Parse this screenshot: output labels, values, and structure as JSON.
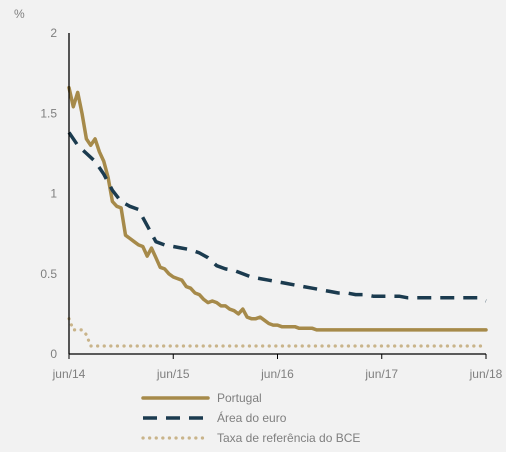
{
  "chart_data": {
    "type": "line",
    "unit_label": "%",
    "ylim": [
      0,
      2
    ],
    "y_ticks": [
      {
        "value": 0,
        "label": "0"
      },
      {
        "value": 0.5,
        "label": "0.5"
      },
      {
        "value": 1,
        "label": "1"
      },
      {
        "value": 1.5,
        "label": "1.5"
      },
      {
        "value": 2,
        "label": "2"
      }
    ],
    "xlim": [
      0,
      48
    ],
    "x_ticks": [
      {
        "value": 0,
        "label": "jun/14"
      },
      {
        "value": 12,
        "label": "jun/15"
      },
      {
        "value": 24,
        "label": "jun/16"
      },
      {
        "value": 36,
        "label": "jun/17"
      },
      {
        "value": 48,
        "label": "jun/18"
      }
    ],
    "legend_position": "bottom",
    "colors": {
      "portugal": "#a68a4a",
      "euro_area": "#1b3b4f",
      "ecb_rate": "#c9b48a",
      "axis": "#000000",
      "text": "#7f7f7f",
      "background": "#f2f2f2"
    },
    "series": [
      {
        "name": "Portugal",
        "style": "solid",
        "x": [
          0,
          0.5,
          1,
          1.5,
          2,
          2.5,
          3,
          3.5,
          4,
          4.5,
          5,
          5.5,
          6,
          6.5,
          7,
          7.5,
          8,
          8.5,
          9,
          9.5,
          10,
          10.5,
          11,
          11.5,
          12,
          12.5,
          13,
          13.5,
          14,
          14.5,
          15,
          15.5,
          16,
          16.5,
          17,
          17.5,
          18,
          18.5,
          19,
          19.5,
          20,
          20.5,
          21,
          21.5,
          22,
          22.5,
          23,
          23.5,
          24,
          24.5,
          25,
          25.5,
          26,
          26.5,
          27,
          27.5,
          28,
          28.5,
          29,
          29.5,
          30,
          30.5,
          31,
          31.5,
          32,
          32.5,
          33,
          33.5,
          34,
          34.5,
          35,
          35.5,
          36,
          36.5,
          37,
          37.5,
          38,
          38.5,
          39,
          39.5,
          40,
          40.5,
          41,
          41.5,
          42,
          42.5,
          43,
          43.5,
          44,
          44.5,
          45,
          45.5,
          46,
          46.5,
          47,
          47.5,
          48
        ],
        "values": [
          1.66,
          1.54,
          1.63,
          1.5,
          1.34,
          1.3,
          1.34,
          1.26,
          1.2,
          1.1,
          0.95,
          0.92,
          0.91,
          0.74,
          0.72,
          0.7,
          0.68,
          0.67,
          0.61,
          0.66,
          0.6,
          0.54,
          0.53,
          0.5,
          0.48,
          0.47,
          0.46,
          0.42,
          0.41,
          0.38,
          0.37,
          0.34,
          0.32,
          0.33,
          0.32,
          0.3,
          0.3,
          0.28,
          0.27,
          0.25,
          0.28,
          0.23,
          0.22,
          0.22,
          0.23,
          0.21,
          0.19,
          0.18,
          0.18,
          0.17,
          0.17,
          0.17,
          0.17,
          0.16,
          0.16,
          0.16,
          0.16,
          0.15,
          0.15,
          0.15,
          0.15,
          0.15,
          0.15,
          0.15,
          0.15,
          0.15,
          0.15,
          0.15,
          0.15,
          0.15,
          0.15,
          0.15,
          0.15,
          0.15,
          0.15,
          0.15,
          0.15,
          0.15,
          0.15,
          0.15,
          0.15,
          0.15,
          0.15,
          0.15,
          0.15,
          0.15,
          0.15,
          0.15,
          0.15,
          0.15,
          0.15,
          0.15,
          0.15,
          0.15,
          0.15,
          0.15,
          0.15
        ]
      },
      {
        "name": "Área do euro",
        "style": "dashed",
        "x": [
          0,
          1,
          2,
          3,
          4,
          5,
          6,
          7,
          8,
          9,
          10,
          11,
          12,
          13,
          14,
          15,
          16,
          17,
          18,
          19,
          20,
          21,
          22,
          23,
          24,
          25,
          26,
          27,
          28,
          29,
          30,
          31,
          32,
          33,
          34,
          35,
          36,
          37,
          38,
          39,
          40,
          41,
          42,
          43,
          44,
          45,
          46,
          47,
          48
        ],
        "values": [
          1.38,
          1.3,
          1.25,
          1.2,
          1.12,
          1.02,
          0.95,
          0.92,
          0.9,
          0.8,
          0.7,
          0.68,
          0.67,
          0.66,
          0.65,
          0.63,
          0.6,
          0.55,
          0.53,
          0.52,
          0.5,
          0.48,
          0.47,
          0.46,
          0.45,
          0.44,
          0.43,
          0.42,
          0.41,
          0.4,
          0.39,
          0.38,
          0.38,
          0.37,
          0.37,
          0.36,
          0.36,
          0.36,
          0.36,
          0.35,
          0.35,
          0.35,
          0.35,
          0.35,
          0.35,
          0.35,
          0.35,
          0.35,
          0.33
        ]
      },
      {
        "name": "Taxa de referência do BCE",
        "style": "dotted",
        "x": [
          0,
          0.5,
          1,
          1.5,
          2,
          2.5,
          3,
          3.5,
          4,
          4.5,
          5,
          5.5,
          6,
          6.5,
          7,
          7.5,
          8,
          8.5,
          9,
          9.5,
          10,
          10.5,
          11,
          11.5,
          12,
          12.5,
          13,
          13.5,
          14,
          14.5,
          15,
          15.5,
          16,
          16.5,
          17,
          17.5,
          18,
          18.5,
          19,
          19.5,
          20,
          20.5,
          21,
          21.5,
          22,
          22.5,
          23,
          23.5,
          24,
          24.5,
          25,
          25.5,
          26,
          26.5,
          27,
          27.5,
          28,
          28.5,
          29,
          29.5,
          30,
          30.5,
          31,
          31.5,
          32,
          32.5,
          33,
          33.5,
          34,
          34.5,
          35,
          35.5,
          36,
          36.5,
          37,
          37.5,
          38,
          38.5,
          39,
          39.5,
          40,
          40.5,
          41,
          41.5,
          42,
          42.5,
          43,
          43.5,
          44,
          44.5,
          45,
          45.5,
          46,
          46.5,
          47,
          47.5,
          48
        ],
        "values": [
          0.22,
          0.15,
          0.15,
          0.15,
          0.12,
          0.05,
          0.05,
          0.05,
          0.05,
          0.05,
          0.05,
          0.05,
          0.05,
          0.05,
          0.05,
          0.05,
          0.05,
          0.05,
          0.05,
          0.05,
          0.05,
          0.05,
          0.05,
          0.05,
          0.05,
          0.05,
          0.05,
          0.05,
          0.05,
          0.05,
          0.05,
          0.05,
          0.05,
          0.05,
          0.05,
          0.05,
          0.05,
          0.05,
          0.05,
          0.05,
          0.05,
          0.05,
          0.05,
          0.05,
          0.05,
          0.05,
          0.05,
          0.05,
          0.05,
          0.05,
          0.05,
          0.05,
          0.05,
          0.05,
          0.05,
          0.05,
          0.05,
          0.05,
          0.05,
          0.05,
          0.05,
          0.05,
          0.05,
          0.05,
          0.05,
          0.05,
          0.05,
          0.05,
          0.05,
          0.05,
          0.05,
          0.05,
          0.05,
          0.05,
          0.05,
          0.05,
          0.05,
          0.05,
          0.05,
          0.05,
          0.05,
          0.05,
          0.05,
          0.05,
          0.05,
          0.05,
          0.05,
          0.05,
          0.05,
          0.05,
          0.05,
          0.05,
          0.05,
          0.05,
          0.05,
          0.05,
          0.05
        ]
      }
    ]
  }
}
